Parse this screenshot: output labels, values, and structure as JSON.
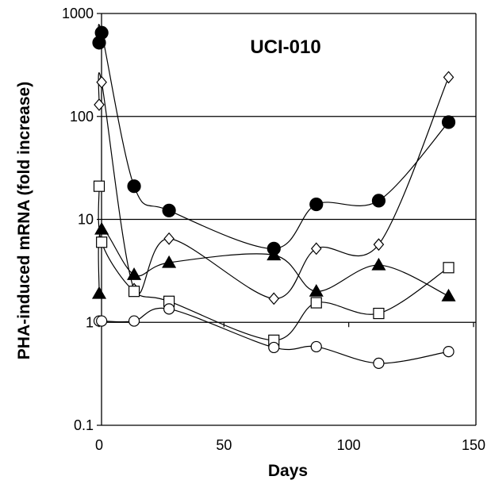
{
  "chart_data": {
    "type": "scatter",
    "title": "UCI-010",
    "xlabel": "Days",
    "ylabel": "PHA-induced mRNA (fold increase)",
    "xlim": [
      0,
      150
    ],
    "ylim": [
      0.1,
      1000
    ],
    "yscale": "log",
    "x_ticks": [
      "0",
      "50",
      "100",
      "150"
    ],
    "y_ticks": [
      "0.1",
      "1",
      "10",
      "100",
      "1000"
    ],
    "y_tick_values": [
      0.1,
      1,
      10,
      100,
      1000
    ],
    "x_tick_values": [
      0,
      50,
      100,
      150
    ],
    "grid": "horizontal major lines",
    "legend": "none",
    "series": [
      {
        "marker": "filled-circle",
        "points": [
          [
            0,
            520
          ],
          [
            1,
            650
          ],
          [
            14,
            21
          ],
          [
            28,
            12.2
          ],
          [
            70,
            5.2
          ],
          [
            87,
            14
          ],
          [
            112,
            15.2
          ],
          [
            140,
            88
          ]
        ]
      },
      {
        "marker": "open-diamond",
        "points": [
          [
            0,
            130
          ],
          [
            1,
            215
          ],
          [
            14,
            2.1
          ],
          [
            28,
            6.5
          ],
          [
            70,
            1.7
          ],
          [
            87,
            5.2
          ],
          [
            112,
            5.7
          ],
          [
            140,
            240
          ]
        ]
      },
      {
        "marker": "open-square",
        "points": [
          [
            0,
            21
          ],
          [
            1,
            6
          ],
          [
            14,
            2.0
          ],
          [
            28,
            1.6
          ],
          [
            70,
            0.67
          ],
          [
            87,
            1.55
          ],
          [
            112,
            1.22
          ],
          [
            140,
            3.4
          ]
        ]
      },
      {
        "marker": "filled-triangle",
        "points": [
          [
            0,
            1.9
          ],
          [
            1,
            8.0
          ],
          [
            14,
            2.9
          ],
          [
            28,
            3.8
          ],
          [
            70,
            4.5
          ],
          [
            87,
            2.0
          ],
          [
            112,
            3.6
          ],
          [
            140,
            1.8
          ]
        ]
      },
      {
        "marker": "open-circle",
        "points": [
          [
            0,
            1.03
          ],
          [
            1,
            1.03
          ],
          [
            14,
            1.03
          ],
          [
            28,
            1.35
          ],
          [
            70,
            0.57
          ],
          [
            87,
            0.58
          ],
          [
            112,
            0.4
          ],
          [
            140,
            0.52
          ]
        ]
      }
    ]
  }
}
